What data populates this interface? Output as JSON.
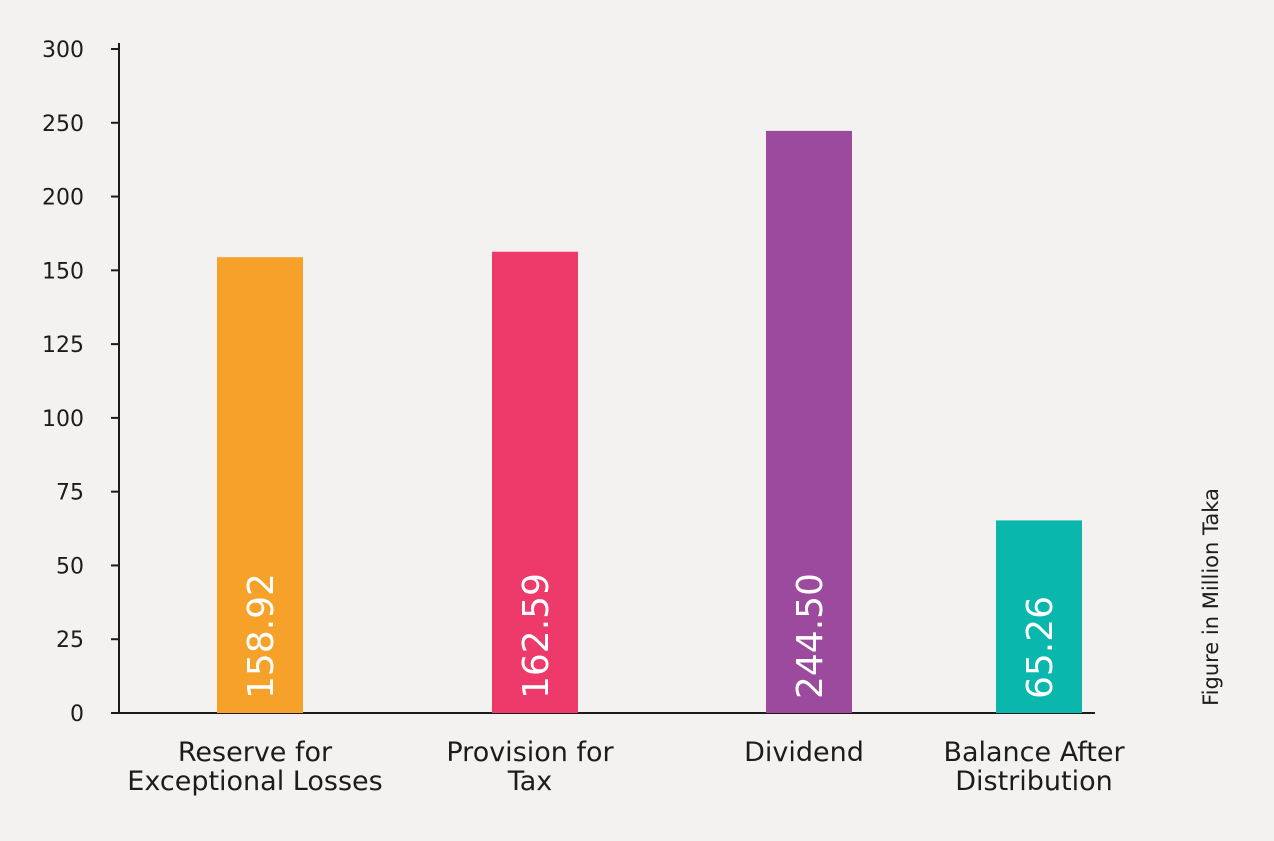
{
  "chart_data": {
    "type": "bar",
    "categories": [
      [
        "Reserve for",
        "Exceptional Losses"
      ],
      [
        "Provision for",
        "Tax"
      ],
      [
        "Dividend"
      ],
      [
        "Balance After",
        "Distribution"
      ]
    ],
    "values": [
      158.92,
      162.59,
      244.5,
      65.26
    ],
    "value_labels": [
      "158.92",
      "162.59",
      "244.50",
      "65.26"
    ],
    "bar_colors": [
      "#f5a12a",
      "#ee3a6a",
      "#9b4a9d",
      "#0ab7ad"
    ],
    "y_ticks": [
      0,
      25,
      50,
      75,
      100,
      125,
      150,
      200,
      250,
      300
    ],
    "y_axis_note": "Figure in Million Taka",
    "grid": false,
    "legend": "none"
  },
  "colors": {
    "background": "#f3f2f0",
    "axis": "#1c1c1c",
    "text": "#1c1c1c",
    "bar_label": "#ffffff"
  }
}
